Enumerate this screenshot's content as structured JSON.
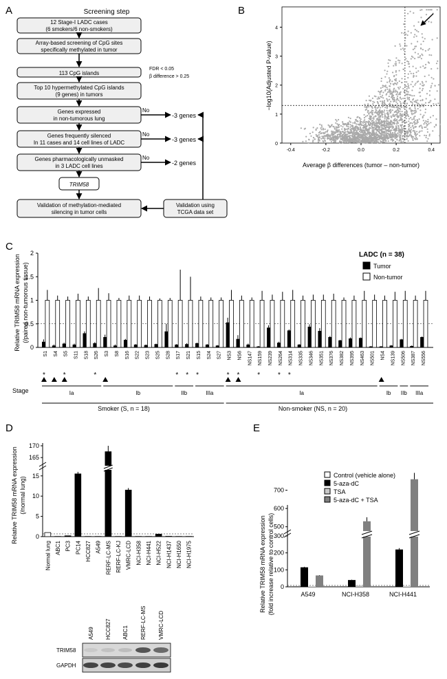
{
  "figure": {
    "panels": {
      "A": "A",
      "B": "B",
      "C": "C",
      "D": "D",
      "E": "E"
    }
  },
  "panel_a": {
    "title": "Screening step",
    "boxes": [
      "12 Stage-I LADC cases",
      "(6 smokers/6 non-smokers)",
      "Array-based screening of CpG sites",
      "specifically methylated in tumor",
      "113 CpG islands",
      "Top 10 hypermethylated CpG islands",
      "(9 genes) in tumors",
      "Genes expressed",
      "in non-tumorous lung",
      "Genes frequently silenced",
      "In 11 cases and 14 cell lines of LADC",
      "Genes pharmacologically unmasked",
      "in 3 LADC cell lines",
      "TRIM58",
      "Validation of methylation-mediated",
      "silencing in tumor cells",
      "Validation using",
      "TCGA data set"
    ],
    "criteria": [
      "FDR < 0.05",
      "β difference > 0.25"
    ],
    "no_labels": [
      "No",
      "No",
      "No"
    ],
    "outcomes": [
      "-3 genes",
      "-3 genes",
      "-2 genes"
    ]
  },
  "panel_b": {
    "ylabel": "−log10(Adjusted P-value)",
    "xlabel": "Average β differences (tumor – non-tumor)",
    "xticks": [
      "-0.4",
      "-0.2",
      "0.0",
      "0.2",
      "0.4"
    ],
    "yticks": [
      "0",
      "1",
      "2",
      "3",
      "4"
    ]
  },
  "panel_c": {
    "ylabel_1": "Relative TRIM58 mRNA expression",
    "ylabel_2": "(/paired non-tumorous tissue)",
    "legend_title": "LADC (n = 38)",
    "legend_tumor": "Tumor",
    "legend_nontumor": "Non-tumor",
    "yticks": [
      "0",
      "0.5",
      "1",
      "1.5",
      "2"
    ],
    "stage_label": "Stage",
    "stage_groups": [
      "Ia",
      "Ib",
      "IIb",
      "IIIa",
      "Ia",
      "Ib",
      "IIb",
      "IIIa"
    ],
    "group_smoker": "Smoker (S, n = 18)",
    "group_nonsmoker": "Non-smoker (NS, n = 20)",
    "colors": {
      "tumor": "#000000",
      "nontumor": "#ffffff"
    }
  },
  "panel_d": {
    "ylabel_1": "Relative TRIM58 mRNA expression",
    "ylabel_2": "(/normal lung)",
    "yticks": [
      "0",
      "5",
      "10",
      "15",
      "165",
      "170"
    ],
    "blot_lanes": [
      "A549",
      "HCC827",
      "ABC1",
      "RERF-LC-MS",
      "VMRC-LCD"
    ],
    "blot_rows": [
      "TRIM58",
      "GAPDH"
    ]
  },
  "panel_e": {
    "legend": [
      "Control (vehicle alone)",
      "5-aza-dC",
      "TSA",
      "5-aza-dC + TSA"
    ],
    "ylabel_1": "Relative TRIM58 mRNA expression",
    "ylabel_2": "(fold increase relative to control cells)",
    "yticks": [
      "0",
      "100",
      "200",
      "300",
      "500",
      "600",
      "700"
    ],
    "colors": [
      "#ffffff",
      "#000000",
      "#c8c8c8",
      "#808080"
    ]
  },
  "chart_data": [
    {
      "type": "scatter",
      "panel": "B",
      "xlabel": "Average β differences (tumor – non-tumor)",
      "ylabel": "−log10(Adjusted P-value)",
      "xlim": [
        -0.45,
        0.45
      ],
      "ylim": [
        0,
        4.7
      ],
      "reference_lines": {
        "x": 0.25,
        "y": 1.3
      },
      "points_note": "",
      "grid": false
    },
    {
      "type": "bar",
      "panel": "C",
      "categories": [
        "S1",
        "S4",
        "S5",
        "S11",
        "S18",
        "S26",
        "S3",
        "S8",
        "S16",
        "S22",
        "S23",
        "S25",
        "S28",
        "S17",
        "S21",
        "S15",
        "S24",
        "S27",
        "NS3",
        "NS6",
        "NS147",
        "NS159",
        "NS239",
        "NS264",
        "NS314",
        "NS335",
        "NS346",
        "NS351",
        "NS376",
        "NS382",
        "NS395",
        "NS463",
        "NS501",
        "NS4",
        "NS139",
        "NS506",
        "NS387",
        "NS556"
      ],
      "series": [
        {
          "name": "Tumor",
          "values": [
            0.12,
            0.04,
            0.08,
            0.06,
            0.3,
            0.09,
            0.22,
            0.04,
            0.16,
            0.06,
            0.05,
            0.07,
            0.34,
            0.06,
            0.07,
            0.09,
            0.06,
            0.04,
            0.53,
            0.18,
            0.06,
            0.02,
            0.42,
            0.1,
            0.36,
            0.06,
            0.44,
            0.35,
            0.22,
            0.15,
            0.19,
            0.2,
            0.02,
            0.02,
            0.04,
            0.17,
            0.03,
            0.22
          ],
          "errors": [
            0.05,
            0.02,
            0.02,
            0.02,
            0.04,
            0.02,
            0.05,
            0.02,
            0.02,
            0.01,
            0.01,
            0.01,
            0.16,
            0.01,
            0.02,
            0.01,
            0.01,
            0.01,
            0.1,
            0.08,
            0.02,
            0.01,
            0.05,
            0.02,
            0.02,
            0.01,
            0.05,
            0.06,
            0.02,
            0.01,
            0.02,
            0.01,
            0.01,
            0.01,
            0.01,
            0.01,
            0.01,
            0.01
          ]
        },
        {
          "name": "Non-tumor",
          "values": [
            1,
            1,
            1,
            1,
            1,
            1,
            1,
            1,
            1,
            1,
            1,
            1,
            1,
            1,
            1,
            1,
            1,
            1,
            1,
            1,
            1,
            1,
            1,
            1,
            1,
            1,
            1,
            1,
            1,
            1,
            1,
            1,
            1,
            1,
            1,
            1,
            1,
            1
          ],
          "errors": [
            0.22,
            0.1,
            0.08,
            0.14,
            0.08,
            0.26,
            0.15,
            0.05,
            0.1,
            0.1,
            0.08,
            0.04,
            0.05,
            0.65,
            0.5,
            0.08,
            0.06,
            0.06,
            0.22,
            0.1,
            0.06,
            0.2,
            0.12,
            0.18,
            0.22,
            0.1,
            0.12,
            0.12,
            0.14,
            0.06,
            0.1,
            0.2,
            0.12,
            0.1,
            0.18,
            0.2,
            0.1,
            0.2
          ]
        }
      ],
      "ylim": [
        0,
        2
      ],
      "reference_line": 0.5,
      "stars": [
        0,
        2,
        5,
        13,
        14,
        15,
        18,
        19,
        21,
        23,
        24
      ],
      "triangles": [
        0,
        1,
        2,
        6,
        18,
        19,
        33
      ]
    },
    {
      "type": "bar",
      "panel": "D",
      "categories": [
        "Normal lung",
        "ABC1",
        "PC3",
        "PC14",
        "HCC827",
        "A549",
        "RERF-LC-MS",
        "RERF-LC-KJ",
        "VMRC-LCD",
        "NCI-H358",
        "NCI-H441",
        "NCI-H522",
        "NCI-H1437",
        "NCI-H1650",
        "NCI-H1975"
      ],
      "values": [
        1,
        0.05,
        0.2,
        15.5,
        0.05,
        0.05,
        167.5,
        0.05,
        11.5,
        0.05,
        0.05,
        0.6,
        0.08,
        0.05,
        0.05
      ],
      "errors": [
        0,
        0,
        0,
        0.5,
        0,
        0,
        2.5,
        0,
        0.5,
        0,
        0,
        0.1,
        0,
        0,
        0
      ],
      "axis_break": [
        17,
        163
      ]
    },
    {
      "type": "bar",
      "panel": "E",
      "categories": [
        "A549",
        "NCI-H358",
        "NCI-H441"
      ],
      "series": [
        {
          "name": "Control (vehicle alone)",
          "values": [
            1,
            1,
            1
          ]
        },
        {
          "name": "5-aza-dC",
          "values": [
            115,
            40,
            220
          ],
          "errors": [
            3,
            2,
            8
          ]
        },
        {
          "name": "TSA",
          "values": [
            2,
            8,
            2
          ]
        },
        {
          "name": "5-aza-dC + TSA",
          "values": [
            67,
            530,
            760
          ],
          "errors": [
            2,
            22,
            35
          ]
        }
      ],
      "axis_break": [
        300,
        480
      ],
      "ylim": [
        0,
        800
      ]
    }
  ]
}
